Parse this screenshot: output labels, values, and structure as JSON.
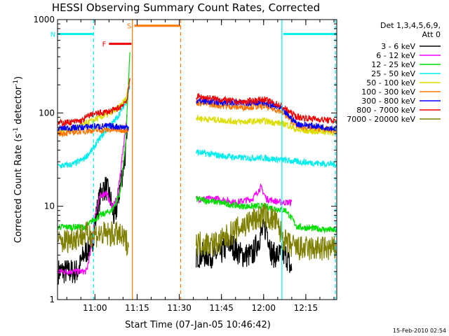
{
  "chart_data": {
    "type": "line",
    "title": "HESSI Observing Summary Count Rates, Corrected",
    "xlabel": "Start Time (07-Jan-05 10:46:42)",
    "ylabel_main": "Corrected Count Rate (s",
    "ylabel_sup1": "-1",
    "ylabel_mid": " detector",
    "ylabel_sup2": "-1",
    "ylabel_end": ")",
    "footer": "15-Feb-2010 02:54",
    "x_range_minutes": [
      46.7,
      146.0
    ],
    "y_log": true,
    "ylim": [
      1,
      1000
    ],
    "x_ticks": [
      {
        "label": "11:00",
        "m": 60
      },
      {
        "label": "11:15",
        "m": 75
      },
      {
        "label": "11:30",
        "m": 90
      },
      {
        "label": "11:45",
        "m": 105
      },
      {
        "label": "12:00",
        "m": 120
      },
      {
        "label": "12:15",
        "m": 135
      }
    ],
    "y_ticks": [
      {
        "label": "1",
        "v": 1
      },
      {
        "label": "10",
        "v": 10
      },
      {
        "label": "100",
        "v": 100
      },
      {
        "label": "1000",
        "v": 1000
      }
    ],
    "legend_title_1": "Det 1,3,4,5,6,9,",
    "legend_title_2": "Att 0",
    "series": [
      {
        "name": "3 - 6 keV",
        "color": "#000000",
        "seg1": [
          [
            47,
            2
          ],
          [
            54,
            2
          ],
          [
            56,
            3
          ],
          [
            59,
            4
          ],
          [
            61,
            10
          ],
          [
            62.5,
            15
          ],
          [
            64,
            16
          ],
          [
            65.5,
            12
          ],
          [
            67,
            7
          ],
          [
            70,
            25
          ],
          [
            71.5,
            50
          ]
        ],
        "seg2": [
          [
            96,
            3
          ],
          [
            100,
            3
          ],
          [
            104,
            3
          ],
          [
            108,
            4
          ],
          [
            112,
            3
          ],
          [
            116,
            3
          ],
          [
            119,
            5
          ],
          [
            121,
            6
          ],
          [
            123,
            3
          ],
          [
            128,
            3
          ],
          [
            130,
            2
          ]
        ]
      },
      {
        "name": "6 - 12 keV",
        "color": "#ff00ff",
        "seg1": [
          [
            47,
            2
          ],
          [
            57,
            2
          ],
          [
            59,
            4
          ],
          [
            60,
            8
          ],
          [
            62,
            13
          ],
          [
            64,
            14
          ],
          [
            66,
            10
          ],
          [
            68,
            12
          ],
          [
            70,
            40
          ],
          [
            71.5,
            100
          ]
        ],
        "seg2": [
          [
            96,
            12
          ],
          [
            104,
            12
          ],
          [
            110,
            11
          ],
          [
            116,
            12
          ],
          [
            119,
            16
          ],
          [
            121,
            12
          ],
          [
            126,
            11
          ],
          [
            130,
            11
          ]
        ]
      },
      {
        "name": "12 - 25 keV",
        "color": "#00dd00",
        "seg1": [
          [
            47,
            6
          ],
          [
            57,
            6
          ],
          [
            59,
            7
          ],
          [
            62,
            8
          ],
          [
            66,
            9
          ],
          [
            69,
            14
          ],
          [
            71,
            50
          ],
          [
            72.5,
            500
          ]
        ],
        "seg2": [
          [
            96,
            12
          ],
          [
            104,
            11
          ],
          [
            112,
            10
          ],
          [
            120,
            10
          ],
          [
            128,
            9
          ],
          [
            132,
            6
          ],
          [
            146,
            5.5
          ]
        ]
      },
      {
        "name": "25 - 50 keV",
        "color": "#00eeee",
        "seg1": [
          [
            47,
            27
          ],
          [
            52,
            28
          ],
          [
            56,
            32
          ],
          [
            59,
            40
          ],
          [
            62,
            55
          ],
          [
            65,
            70
          ],
          [
            68,
            90
          ],
          [
            71,
            130
          ],
          [
            72.5,
            200
          ]
        ],
        "seg2": [
          [
            96,
            38
          ],
          [
            104,
            35
          ],
          [
            112,
            33
          ],
          [
            120,
            33
          ],
          [
            128,
            31
          ],
          [
            132,
            30
          ],
          [
            146,
            28
          ]
        ]
      },
      {
        "name": "50 - 100 keV",
        "color": "#dddd00",
        "seg1": [
          [
            47,
            65
          ],
          [
            52,
            68
          ],
          [
            56,
            75
          ],
          [
            60,
            85
          ],
          [
            64,
            95
          ],
          [
            68,
            110
          ],
          [
            71,
            140
          ],
          [
            72.5,
            240
          ]
        ],
        "seg2": [
          [
            96,
            88
          ],
          [
            104,
            84
          ],
          [
            112,
            80
          ],
          [
            120,
            82
          ],
          [
            128,
            76
          ],
          [
            132,
            65
          ],
          [
            146,
            62
          ]
        ]
      },
      {
        "name": "100 - 300 keV",
        "color": "#ff7700",
        "seg1": [
          [
            47,
            60
          ],
          [
            52,
            62
          ],
          [
            56,
            64
          ],
          [
            60,
            65
          ],
          [
            66,
            66
          ],
          [
            72,
            66
          ]
        ],
        "seg2": [
          [
            96,
            130
          ],
          [
            104,
            120
          ],
          [
            112,
            115
          ],
          [
            120,
            118
          ],
          [
            126,
            105
          ],
          [
            132,
            72
          ],
          [
            146,
            65
          ]
        ]
      },
      {
        "name": "300 - 800 keV",
        "color": "#0000ff",
        "seg1": [
          [
            47,
            68
          ],
          [
            55,
            70
          ],
          [
            60,
            72
          ],
          [
            66,
            72
          ],
          [
            72,
            70
          ]
        ],
        "seg2": [
          [
            96,
            135
          ],
          [
            104,
            130
          ],
          [
            112,
            128
          ],
          [
            120,
            130
          ],
          [
            126,
            112
          ],
          [
            132,
            76
          ],
          [
            146,
            68
          ]
        ]
      },
      {
        "name": "800 - 7000 keV",
        "color": "#ee0000",
        "seg1": [
          [
            47,
            78
          ],
          [
            52,
            80
          ],
          [
            55,
            82
          ],
          [
            56,
            85
          ],
          [
            58,
            95
          ],
          [
            62,
            100
          ],
          [
            66,
            105
          ],
          [
            69,
            115
          ],
          [
            71.5,
            140
          ],
          [
            72.5,
            240
          ]
        ],
        "seg2": [
          [
            96,
            150
          ],
          [
            104,
            140
          ],
          [
            112,
            130
          ],
          [
            116,
            135
          ],
          [
            120,
            140
          ],
          [
            126,
            120
          ],
          [
            132,
            90
          ],
          [
            146,
            82
          ]
        ]
      },
      {
        "name": "7000 - 20000 keV",
        "color": "#808000",
        "seg1": [
          [
            47,
            4
          ],
          [
            56,
            5
          ],
          [
            60,
            5
          ],
          [
            64,
            5
          ],
          [
            68,
            5
          ],
          [
            72,
            4
          ]
        ],
        "seg2": [
          [
            96,
            4
          ],
          [
            100,
            4
          ],
          [
            104,
            4
          ],
          [
            108,
            5
          ],
          [
            112,
            6
          ],
          [
            116,
            7
          ],
          [
            120,
            8
          ],
          [
            124,
            7
          ],
          [
            128,
            4
          ],
          [
            132,
            3.5
          ],
          [
            146,
            3.5
          ]
        ]
      }
    ],
    "flags": [
      {
        "label": "F",
        "color": "#ee0000",
        "from": 65,
        "to": 73,
        "v": 550
      },
      {
        "label": "N",
        "color": "#00eeee",
        "from": 47,
        "to": 59.5,
        "v": 700
      },
      {
        "label": "S",
        "color": "#ff7700",
        "from": 74,
        "to": 90.5,
        "v": 860
      }
    ],
    "vlines": [
      {
        "color": "#00eeee",
        "m": 59.5,
        "dash": true
      },
      {
        "color": "#ff7700",
        "m": 73.3,
        "dash": false
      },
      {
        "color": "#ff7700",
        "m": 90.5,
        "dash": true
      },
      {
        "color": "#00eeee",
        "m": 126.5,
        "dash": false
      },
      {
        "color": "#00eeee",
        "m": 145.5,
        "dash": true
      }
    ],
    "top_segments": [
      {
        "color": "#00eeee",
        "from": 127,
        "to": 146,
        "v": 700
      }
    ]
  }
}
